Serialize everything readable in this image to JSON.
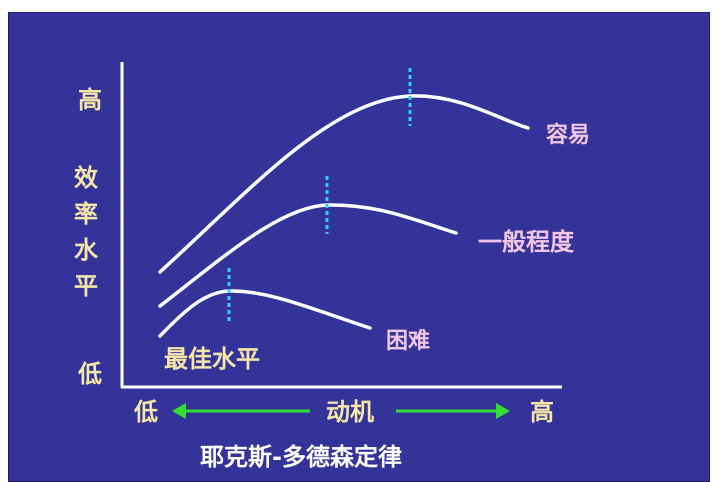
{
  "y_axis": {
    "high": "高",
    "low": "低",
    "label_chars": [
      "效",
      "率",
      "水",
      "平"
    ]
  },
  "x_axis": {
    "low": "低",
    "label": "动机",
    "high": "高"
  },
  "curves": [
    {
      "label": "容易"
    },
    {
      "label": "一般程度"
    },
    {
      "label": "困难"
    }
  ],
  "optimum_label": "最佳水平",
  "title": "耶克斯-多德森定律",
  "colors": {
    "background": "#333399",
    "axis": "#ffffff",
    "curve": "#ffffff",
    "peak_marker": "#33ccff",
    "arrow": "#33dd33",
    "axis_text": "#f5e6a8",
    "curve_label": "#f3c6e6",
    "title": "#ffffff"
  }
}
